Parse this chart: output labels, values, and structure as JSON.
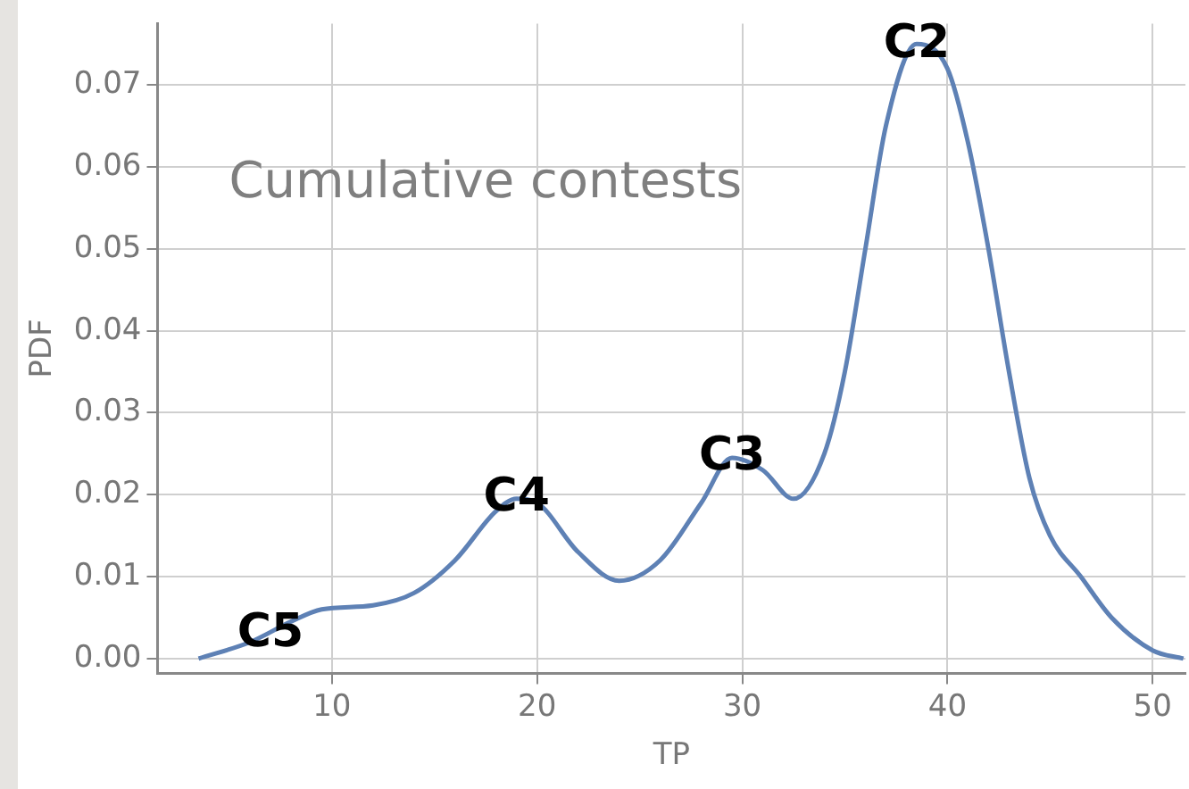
{
  "chart_data": {
    "type": "line",
    "xlabel": "TP",
    "ylabel": "PDF",
    "annotations": [
      "Cumulative contests",
      {
        "text": "C2",
        "x": 38.5,
        "y": 0.075
      },
      {
        "text": "C3",
        "x": 29.5,
        "y": 0.0245
      },
      {
        "text": "C4",
        "x": 19,
        "y": 0.0195
      },
      {
        "text": "C5",
        "x": 7,
        "y": 0.003
      }
    ],
    "series": [
      {
        "color": "#5e81b5",
        "x": [
          3.5,
          6,
          8,
          9.5,
          12,
          14,
          16,
          18,
          19,
          20,
          22,
          24,
          26,
          28,
          29.5,
          31,
          32.5,
          34,
          35,
          36,
          37,
          38.5,
          40,
          41,
          42,
          43,
          44,
          45,
          46.5,
          48,
          50,
          51.5
        ],
        "values": [
          0.0,
          0.002,
          0.0045,
          0.006,
          0.0065,
          0.008,
          0.012,
          0.018,
          0.0195,
          0.019,
          0.013,
          0.0095,
          0.012,
          0.019,
          0.0245,
          0.023,
          0.0195,
          0.025,
          0.035,
          0.05,
          0.065,
          0.075,
          0.072,
          0.063,
          0.05,
          0.035,
          0.022,
          0.015,
          0.01,
          0.005,
          0.001,
          0.0
        ]
      }
    ],
    "xlim": [
      1.5,
      51.6
    ],
    "xticks": [
      10,
      20,
      30,
      40,
      50
    ],
    "ylim": [
      -0.0018,
      0.0775
    ],
    "yticks": [
      {
        "value": 0,
        "label": "0.00"
      },
      {
        "value": 0.01,
        "label": "0.01"
      },
      {
        "value": 0.02,
        "label": "0.02"
      },
      {
        "value": 0.03,
        "label": "0.03"
      },
      {
        "value": 0.04,
        "label": "0.04"
      },
      {
        "value": 0.05,
        "label": "0.05"
      },
      {
        "value": 0.06,
        "label": "0.06"
      },
      {
        "value": 0.07,
        "label": "0.07"
      }
    ],
    "grid": true,
    "legend": false,
    "marker": "none",
    "line_style": "solid"
  }
}
